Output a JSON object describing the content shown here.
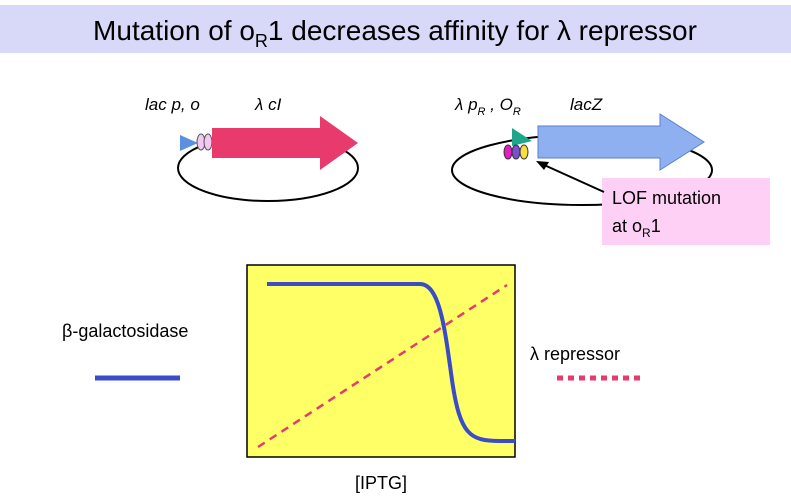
{
  "title": {
    "before": "Mutation of o",
    "sub": "R",
    "after": "1 decreases affinity for λ repressor"
  },
  "plasmid1": {
    "promoter": "lac p, o",
    "gene": "λ cI"
  },
  "plasmid2": {
    "promoter": "λ p",
    "promoter_sub": "R",
    "operator": " , O",
    "operator_sub": "R",
    "gene": "lacZ"
  },
  "callout": {
    "line1": "LOF mutation",
    "line2_before": "at o",
    "line2_sub": "R",
    "line2_after": "1"
  },
  "graph": {
    "left_label": "β-galactosidase",
    "right_label": "λ repressor",
    "x_label": "[IPTG]"
  }
}
